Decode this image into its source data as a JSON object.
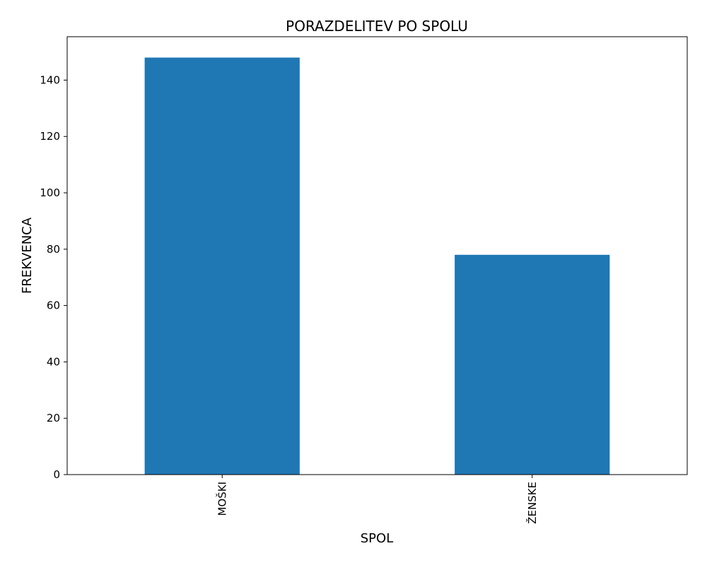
{
  "chart_data": {
    "type": "bar",
    "title": "PORAZDELITEV PO SPOLU",
    "xlabel": "SPOL",
    "ylabel": "FREKVENCA",
    "categories": [
      "MOŠKI",
      "ŽENSKE"
    ],
    "values": [
      148,
      78
    ],
    "ylim": [
      0,
      155.4
    ],
    "yticks": [
      0,
      20,
      40,
      60,
      80,
      100,
      120,
      140
    ],
    "bar_color": "#1f77b4",
    "grid": false,
    "legend": "none"
  }
}
